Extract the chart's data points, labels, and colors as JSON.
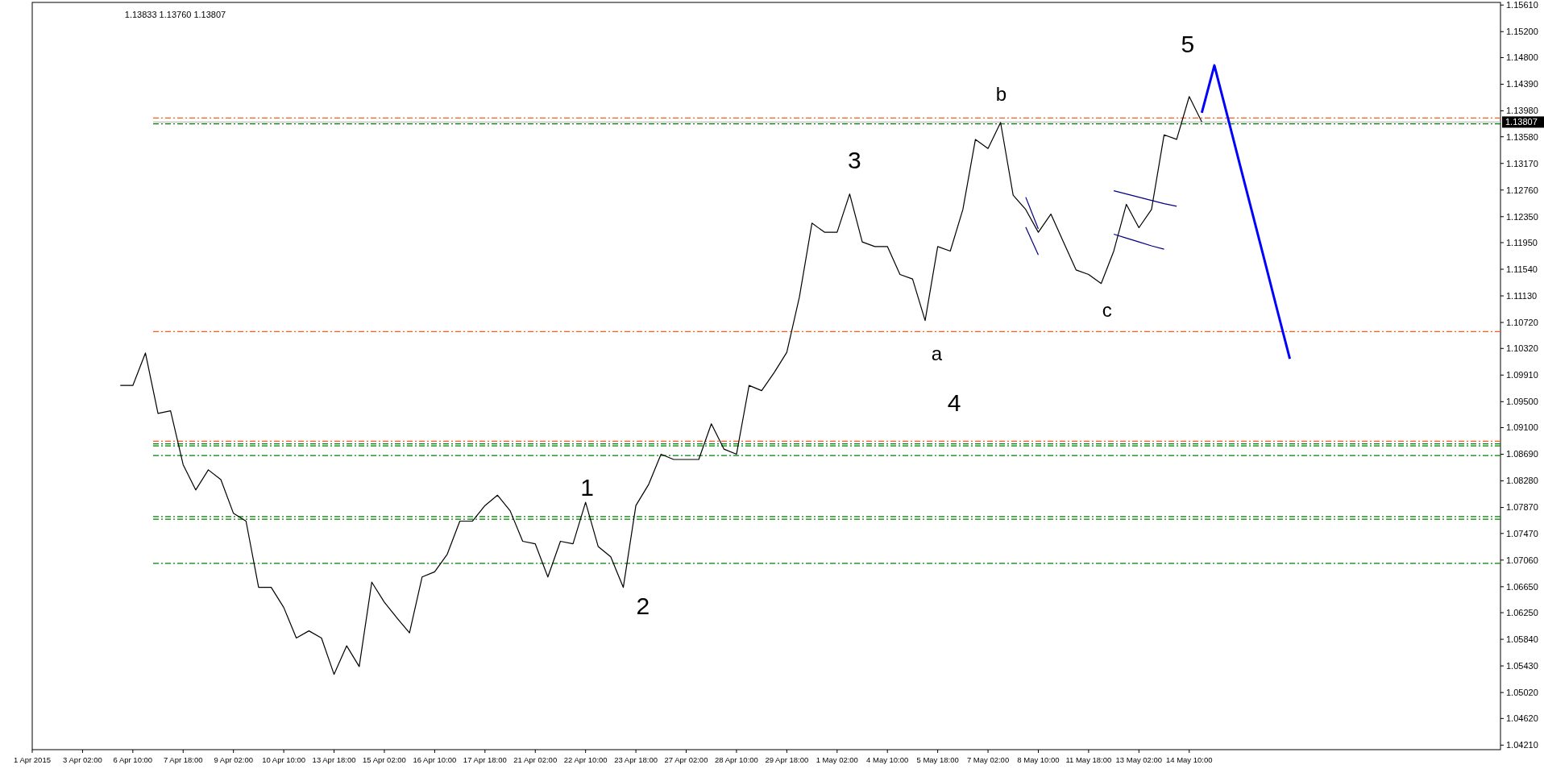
{
  "chart_data": {
    "type": "line",
    "annotations": [
      "1.13833 1.13760 1.13807",
      "1",
      "2",
      "3",
      "a",
      "4",
      "b",
      "c",
      "5"
    ],
    "categories": [
      "1 Apr 2015",
      null,
      null,
      null,
      "3 Apr 02:00",
      null,
      null,
      null,
      "6 Apr 10:00",
      null,
      null,
      null,
      "7 Apr 18:00",
      null,
      null,
      null,
      "9 Apr 02:00",
      null,
      null,
      null,
      "10 Apr 10:00",
      null,
      null,
      null,
      "13 Apr 18:00",
      null,
      null,
      null,
      "15 Apr 02:00",
      null,
      null,
      null,
      "16 Apr 10:00",
      null,
      null,
      null,
      "17 Apr 18:00",
      null,
      null,
      null,
      "21 Apr 02:00",
      null,
      null,
      null,
      "22 Apr 10:00",
      null,
      null,
      null,
      "23 Apr 18:00",
      null,
      null,
      null,
      "27 Apr 02:00",
      null,
      null,
      null,
      "28 Apr 10:00",
      null,
      null,
      null,
      "29 Apr 18:00",
      null,
      null,
      null,
      "1 May 02:00",
      null,
      null,
      null,
      "4 May 10:00",
      null,
      null,
      null,
      "5 May 18:00",
      null,
      null,
      null,
      "7 May 02:00",
      null,
      null,
      null,
      "8 May 10:00",
      null,
      null,
      null,
      "11 May 18:00",
      null,
      null,
      null,
      "13 May 02:00",
      null,
      null,
      null,
      "14 May 10:00",
      null,
      null,
      null,
      null,
      null,
      null,
      null,
      null,
      null,
      null,
      null,
      null,
      null,
      null,
      null,
      null,
      null,
      null,
      null,
      null,
      null,
      null,
      null,
      null
    ],
    "ylim": [
      1.0414,
      1.1565
    ],
    "yticks": [
      {
        "value": 1.0421,
        "label": "1.04210"
      },
      {
        "value": 1.0462,
        "label": "1.04620"
      },
      {
        "value": 1.0502,
        "label": "1.05020"
      },
      {
        "value": 1.0543,
        "label": "1.05430"
      },
      {
        "value": 1.0584,
        "label": "1.05840"
      },
      {
        "value": 1.0625,
        "label": "1.06250"
      },
      {
        "value": 1.0665,
        "label": "1.06650"
      },
      {
        "value": 1.0706,
        "label": "1.07060"
      },
      {
        "value": 1.0747,
        "label": "1.07470"
      },
      {
        "value": 1.0787,
        "label": "1.07870"
      },
      {
        "value": 1.0828,
        "label": "1.08280"
      },
      {
        "value": 1.0869,
        "label": "1.08690"
      },
      {
        "value": 1.091,
        "label": "1.09100"
      },
      {
        "value": 1.095,
        "label": "1.09500"
      },
      {
        "value": 1.0991,
        "label": "1.09910"
      },
      {
        "value": 1.1032,
        "label": "1.10320"
      },
      {
        "value": 1.1072,
        "label": "1.10720"
      },
      {
        "value": 1.1113,
        "label": "1.11130"
      },
      {
        "value": 1.1154,
        "label": "1.11540"
      },
      {
        "value": 1.1195,
        "label": "1.11950"
      },
      {
        "value": 1.1235,
        "label": "1.12350"
      },
      {
        "value": 1.1276,
        "label": "1.12760"
      },
      {
        "value": 1.1317,
        "label": "1.13170"
      },
      {
        "value": 1.1358,
        "label": "1.13580"
      },
      {
        "value": 1.1398,
        "label": "1.13980"
      },
      {
        "value": 1.1439,
        "label": "1.14390"
      },
      {
        "value": 1.148,
        "label": "1.14800"
      },
      {
        "value": 1.152,
        "label": "1.15200"
      },
      {
        "value": 1.1561,
        "label": "1.15610"
      }
    ],
    "grid": false,
    "ref_lines": [
      {
        "axis": "y",
        "value": 1.1387,
        "color": "#ff5a1f",
        "line_style": "dashed"
      },
      {
        "axis": "y",
        "value": 1.1378,
        "color": "#008000",
        "line_style": "dashed"
      },
      {
        "axis": "y",
        "value": 1.13807,
        "label": "1.13807",
        "color": "#c0c0c0",
        "line_style": "solid"
      },
      {
        "axis": "y",
        "value": 1.1058,
        "color": "#ff5a1f",
        "line_style": "dashed"
      },
      {
        "axis": "y",
        "value": 1.0889,
        "color": "#ff5a1f",
        "line_style": "dashed"
      },
      {
        "axis": "y",
        "value": 1.0885,
        "color": "#008000",
        "line_style": "dashed"
      },
      {
        "axis": "y",
        "value": 1.0882,
        "color": "#008000",
        "line_style": "dashed"
      },
      {
        "axis": "y",
        "value": 1.0867,
        "color": "#008000",
        "line_style": "dashed"
      },
      {
        "axis": "y",
        "value": 1.0773,
        "color": "#008000",
        "line_style": "dashed"
      },
      {
        "axis": "y",
        "value": 1.0769,
        "color": "#008000",
        "line_style": "dashed"
      },
      {
        "axis": "y",
        "value": 1.0701,
        "color": "#008000",
        "line_style": "dashed"
      }
    ],
    "series": [
      {
        "color": "#000000",
        "values": [
          null,
          null,
          null,
          null,
          null,
          null,
          null,
          1.0975,
          1.0975,
          1.1025,
          1.0932,
          1.0936,
          1.0853,
          1.0814,
          1.0845,
          1.083,
          1.0778,
          1.0766,
          1.0664,
          1.0664,
          1.0633,
          1.0586,
          1.0597,
          1.0586,
          1.053,
          1.0574,
          1.0542,
          1.0672,
          1.0641,
          1.0617,
          1.0594,
          1.068,
          1.0688,
          1.0715,
          1.0766,
          1.0766,
          1.079,
          1.0806,
          1.0782,
          1.0735,
          1.0731,
          1.068,
          1.0735,
          1.0731,
          1.0795,
          1.0727,
          1.0711,
          1.0664,
          1.079,
          1.0822,
          1.0869,
          1.0861,
          1.0861,
          1.0861,
          1.0916,
          1.0877,
          1.0869,
          1.0975,
          1.0967,
          1.0995,
          1.1026,
          1.1111,
          1.1225,
          1.1211,
          1.1211,
          1.127,
          1.1196,
          1.1189,
          1.1189,
          1.1146,
          1.1139,
          1.1075,
          1.1189,
          1.1182,
          1.1246,
          1.1354,
          1.134,
          1.138,
          1.1268,
          1.1246,
          1.1211,
          1.1239,
          1.1196,
          1.1153,
          1.1146,
          1.1132,
          1.1182,
          1.1254,
          1.1218,
          1.1246,
          1.1361,
          1.1354,
          1.142,
          1.1381,
          null,
          null,
          null,
          null,
          null,
          null,
          null,
          null,
          null,
          null,
          null,
          null,
          null,
          null,
          null,
          null,
          null,
          null,
          null,
          null,
          null,
          null,
          null
        ]
      },
      {
        "color": "#0000ff",
        "values": [
          null,
          null,
          null,
          null,
          null,
          null,
          null,
          null,
          null,
          null,
          null,
          null,
          null,
          null,
          null,
          null,
          null,
          null,
          null,
          null,
          null,
          null,
          null,
          null,
          null,
          null,
          null,
          null,
          null,
          null,
          null,
          null,
          null,
          null,
          null,
          null,
          null,
          null,
          null,
          null,
          null,
          null,
          null,
          null,
          null,
          null,
          null,
          null,
          null,
          null,
          null,
          null,
          null,
          null,
          null,
          null,
          null,
          null,
          null,
          null,
          null,
          null,
          null,
          null,
          null,
          null,
          null,
          null,
          null,
          null,
          null,
          null,
          null,
          null,
          null,
          null,
          null,
          null,
          null,
          null,
          null,
          null,
          null,
          null,
          null,
          null,
          null,
          null,
          null,
          null,
          null,
          null,
          null,
          1.1395,
          1.1468,
          1.1393,
          1.1317,
          1.1242,
          1.1167,
          1.1091,
          1.1016,
          null,
          null,
          null,
          null,
          null,
          null,
          null,
          null,
          null,
          null,
          null,
          null,
          null,
          null,
          null,
          null
        ]
      },
      {
        "color": "#000080",
        "values": [
          null,
          null,
          null,
          null,
          null,
          null,
          null,
          null,
          null,
          null,
          null,
          null,
          null,
          null,
          null,
          null,
          null,
          null,
          null,
          null,
          null,
          null,
          null,
          null,
          null,
          null,
          null,
          null,
          null,
          null,
          null,
          null,
          null,
          null,
          null,
          null,
          null,
          null,
          null,
          null,
          null,
          null,
          null,
          null,
          null,
          null,
          null,
          null,
          null,
          null,
          null,
          null,
          null,
          null,
          null,
          null,
          null,
          null,
          null,
          null,
          null,
          null,
          null,
          null,
          null,
          null,
          null,
          null,
          null,
          null,
          null,
          null,
          null,
          null,
          null,
          null,
          null,
          null,
          null,
          null,
          null,
          null,
          null,
          null,
          null,
          null,
          1.1275,
          1.127,
          1.1265,
          1.126,
          1.1255,
          1.1251,
          null,
          null,
          null,
          null,
          null,
          null,
          null,
          null,
          null,
          null,
          null,
          null,
          null,
          null,
          null,
          null,
          null,
          null,
          null,
          null,
          null,
          null,
          null,
          null,
          null
        ]
      },
      {
        "color": "#000080",
        "values": [
          null,
          null,
          null,
          null,
          null,
          null,
          null,
          null,
          null,
          null,
          null,
          null,
          null,
          null,
          null,
          null,
          null,
          null,
          null,
          null,
          null,
          null,
          null,
          null,
          null,
          null,
          null,
          null,
          null,
          null,
          null,
          null,
          null,
          null,
          null,
          null,
          null,
          null,
          null,
          null,
          null,
          null,
          null,
          null,
          null,
          null,
          null,
          null,
          null,
          null,
          null,
          null,
          null,
          null,
          null,
          null,
          null,
          null,
          null,
          null,
          null,
          null,
          null,
          null,
          null,
          null,
          null,
          null,
          null,
          null,
          null,
          null,
          null,
          null,
          null,
          null,
          null,
          null,
          null,
          null,
          null,
          null,
          null,
          null,
          null,
          null,
          1.1208,
          1.1202,
          1.1196,
          1.119,
          1.1185,
          null,
          null,
          null,
          null,
          null,
          null,
          null,
          null,
          null,
          null,
          null,
          null,
          null,
          null,
          null,
          null,
          null,
          null,
          null,
          null,
          null,
          null,
          null,
          null,
          null,
          null
        ]
      },
      {
        "color": "#000080",
        "values": [
          null,
          null,
          null,
          null,
          null,
          null,
          null,
          null,
          null,
          null,
          null,
          null,
          null,
          null,
          null,
          null,
          null,
          null,
          null,
          null,
          null,
          null,
          null,
          null,
          null,
          null,
          null,
          null,
          null,
          null,
          null,
          null,
          null,
          null,
          null,
          null,
          null,
          null,
          null,
          null,
          null,
          null,
          null,
          null,
          null,
          null,
          null,
          null,
          null,
          null,
          null,
          null,
          null,
          null,
          null,
          null,
          null,
          null,
          null,
          null,
          null,
          null,
          null,
          null,
          null,
          null,
          null,
          null,
          null,
          null,
          null,
          null,
          null,
          null,
          null,
          null,
          null,
          null,
          null,
          1.1265,
          1.1216,
          null,
          null,
          null,
          null,
          null,
          null,
          null,
          null,
          null,
          null,
          null,
          null,
          null,
          null,
          null,
          null,
          null,
          null,
          null,
          null,
          null,
          null,
          null,
          null,
          null,
          null,
          null,
          null,
          null,
          null,
          null,
          null,
          null,
          null,
          null,
          null
        ]
      },
      {
        "color": "#000080",
        "values": [
          null,
          null,
          null,
          null,
          null,
          null,
          null,
          null,
          null,
          null,
          null,
          null,
          null,
          null,
          null,
          null,
          null,
          null,
          null,
          null,
          null,
          null,
          null,
          null,
          null,
          null,
          null,
          null,
          null,
          null,
          null,
          null,
          null,
          null,
          null,
          null,
          null,
          null,
          null,
          null,
          null,
          null,
          null,
          null,
          null,
          null,
          null,
          null,
          null,
          null,
          null,
          null,
          null,
          null,
          null,
          null,
          null,
          null,
          null,
          null,
          null,
          null,
          null,
          null,
          null,
          null,
          null,
          null,
          null,
          null,
          null,
          null,
          null,
          null,
          null,
          null,
          null,
          null,
          null,
          1.1219,
          1.1176,
          null,
          null,
          null,
          null,
          null,
          null,
          null,
          null,
          null,
          null,
          null,
          null,
          null,
          null,
          null,
          null,
          null,
          null,
          null,
          null,
          null,
          null,
          null,
          null,
          null,
          null,
          null,
          null,
          null,
          null,
          null,
          null,
          null,
          null,
          null,
          null
        ]
      }
    ]
  }
}
